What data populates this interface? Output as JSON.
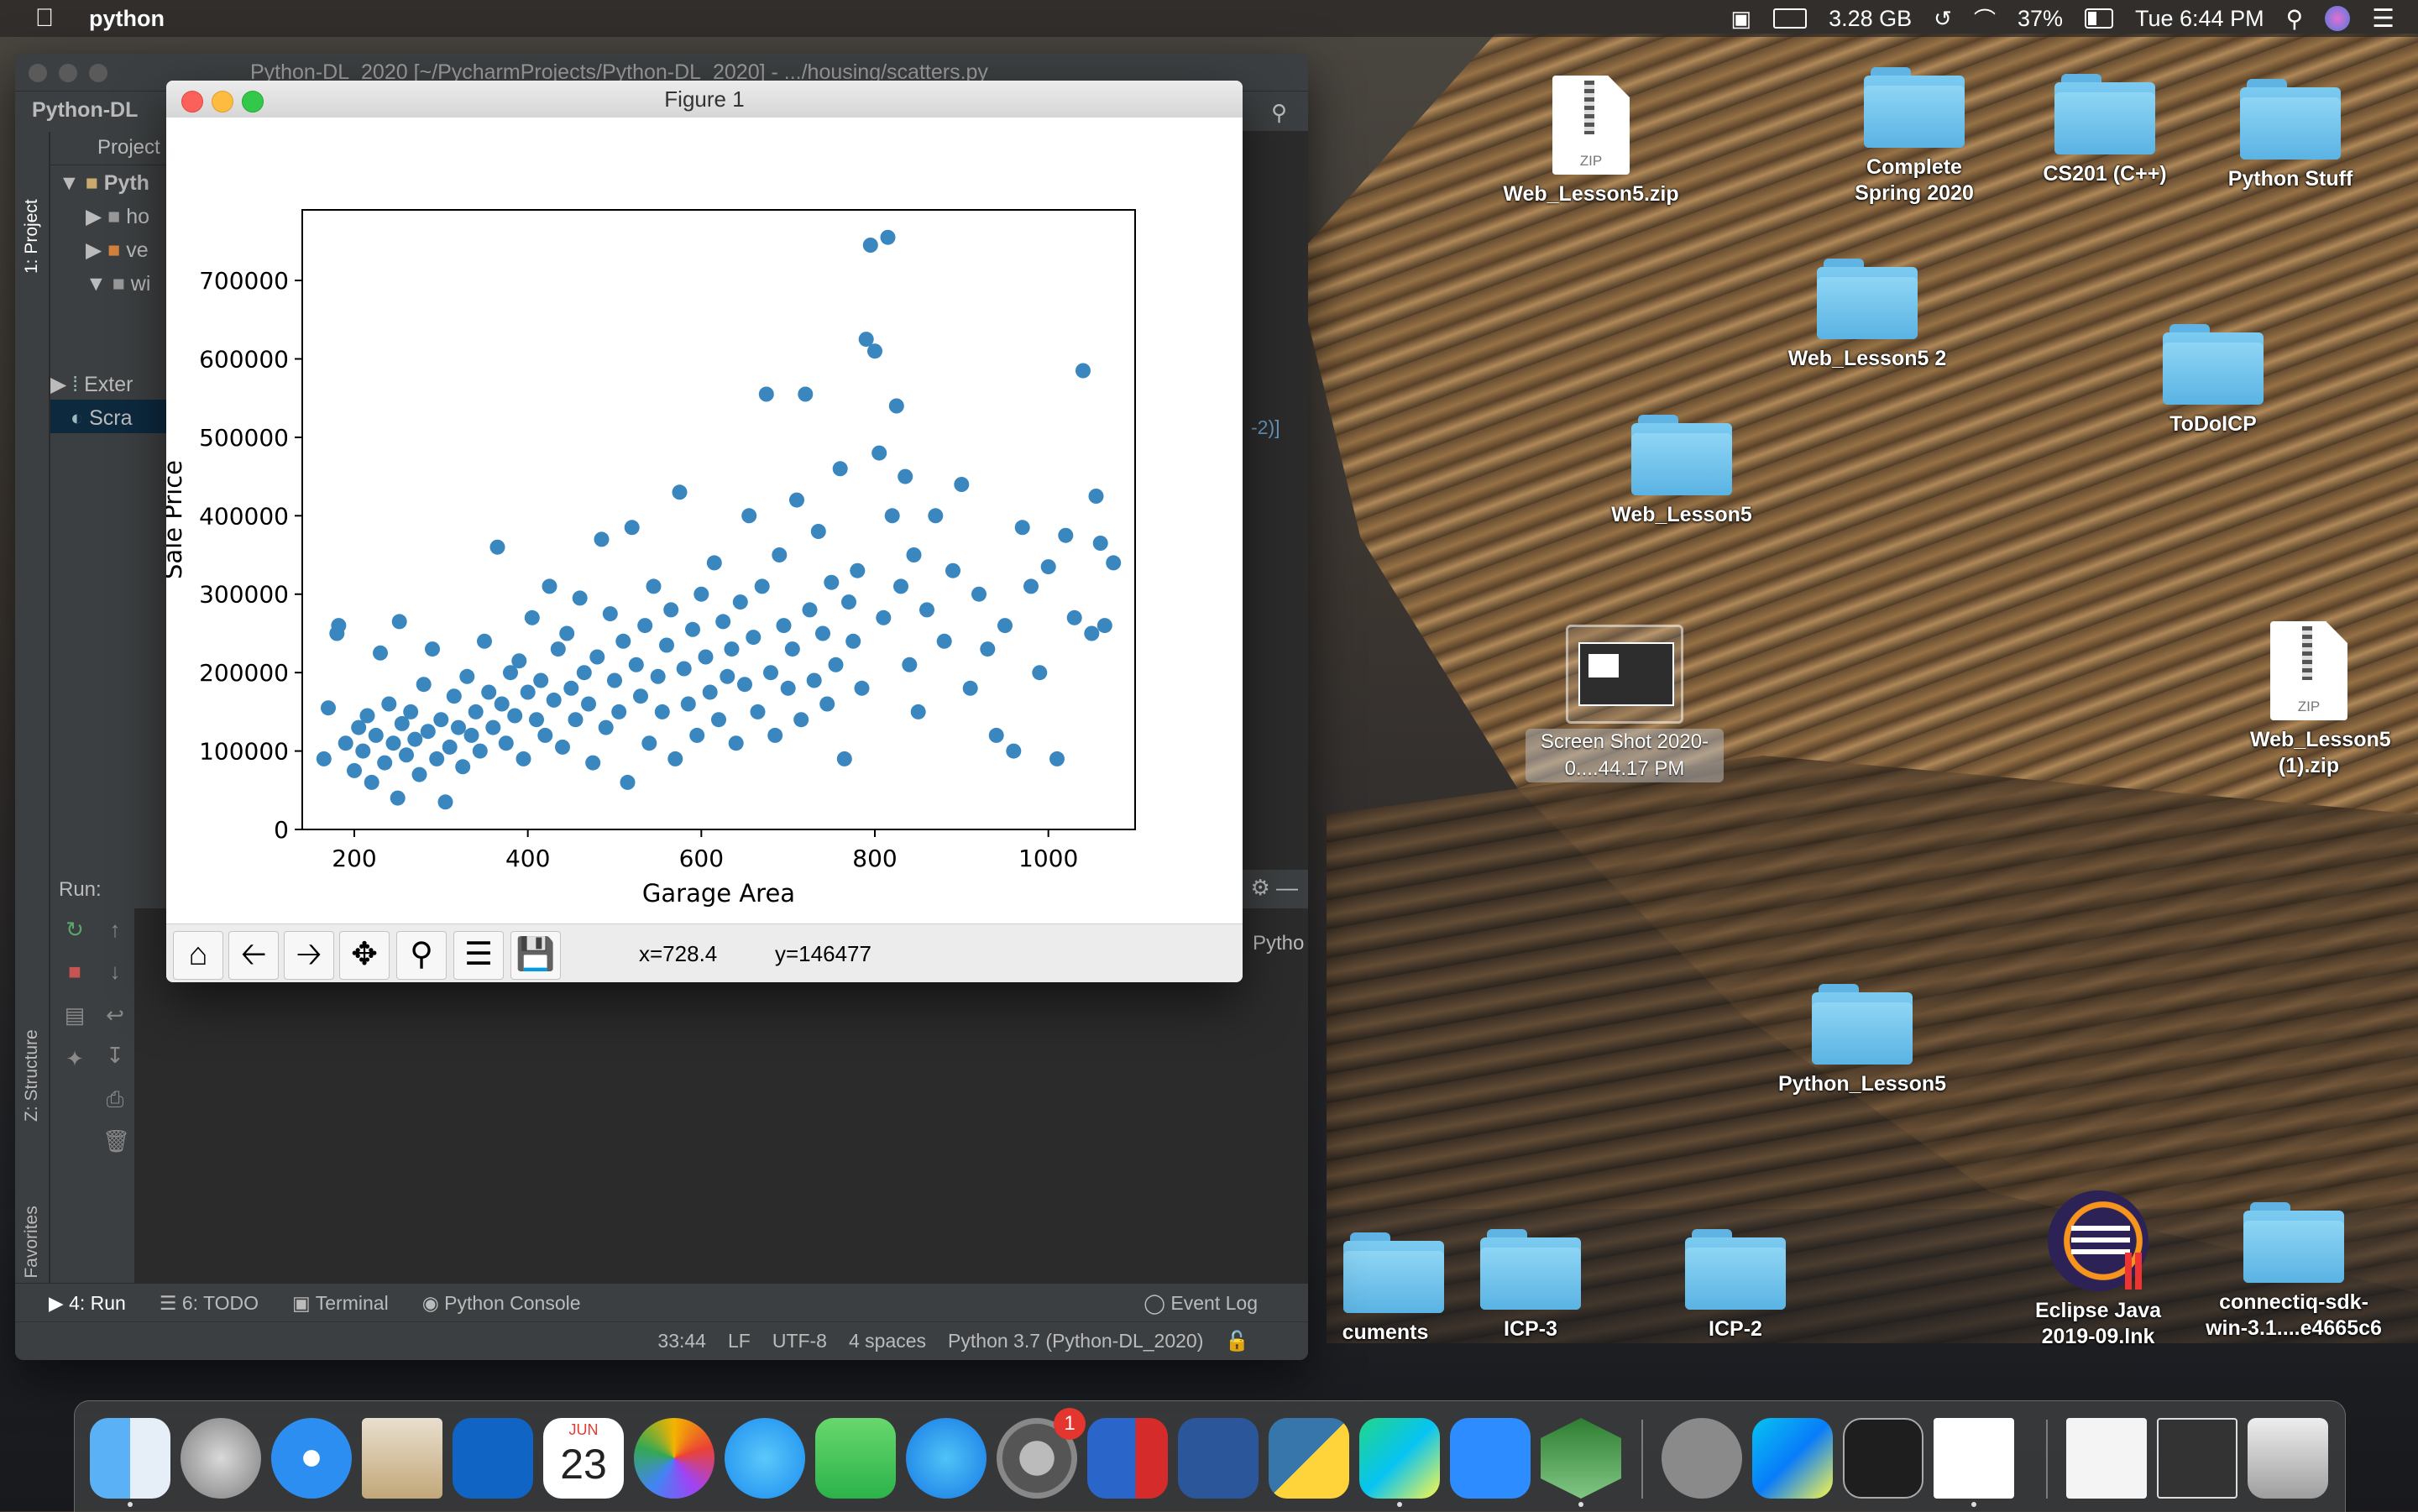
{
  "menubar": {
    "app_name": "python",
    "memory": "3.28 GB",
    "battery": "37%",
    "clock": "Tue 6:44 PM"
  },
  "pycharm": {
    "title": "Python-DL_2020 [~/PycharmProjects/Python-DL_2020] - .../housing/scatters.py",
    "project_name": "Python-DL",
    "project_tab": "Project",
    "tree": [
      "Pyth",
      "ho",
      "ve",
      "wi",
      "Exter",
      "Scra"
    ],
    "editor_snippet": "-2)]",
    "side_tabs": {
      "project": "1: Project",
      "structure": "Z: Structure",
      "favorites": "2: Favorites"
    },
    "run_label": "Run:",
    "run_right_text": "Pytho",
    "bottom_tabs": {
      "run": "4: Run",
      "todo": "6: TODO",
      "terminal": "Terminal",
      "console": "Python Console",
      "event_log": "Event Log"
    },
    "status": {
      "position": "33:44",
      "line_sep": "LF",
      "encoding": "UTF-8",
      "indent": "4 spaces",
      "interpreter": "Python 3.7 (Python-DL_2020)"
    }
  },
  "figure": {
    "title": "Figure 1",
    "x_readout": "x=728.4",
    "y_readout": "y=146477",
    "toolbar": [
      "home-icon",
      "back-icon",
      "forward-icon",
      "pan-icon",
      "zoom-icon",
      "configure-icon",
      "save-icon"
    ]
  },
  "chart_data": {
    "type": "scatter",
    "title": "",
    "xlabel": "Garage Area",
    "ylabel": "Sale Price",
    "xlim": [
      140,
      1100
    ],
    "ylim": [
      0,
      790000
    ],
    "xticks": [
      200,
      400,
      600,
      800,
      1000
    ],
    "yticks": [
      0,
      100000,
      200000,
      300000,
      400000,
      500000,
      600000,
      700000
    ],
    "color": "#3a86be",
    "points": [
      [
        165,
        90000
      ],
      [
        170,
        155000
      ],
      [
        180,
        250000
      ],
      [
        182,
        260000
      ],
      [
        190,
        110000
      ],
      [
        200,
        75000
      ],
      [
        205,
        130000
      ],
      [
        210,
        100000
      ],
      [
        215,
        145000
      ],
      [
        220,
        60000
      ],
      [
        225,
        120000
      ],
      [
        230,
        225000
      ],
      [
        235,
        85000
      ],
      [
        240,
        160000
      ],
      [
        245,
        110000
      ],
      [
        250,
        40000
      ],
      [
        252,
        265000
      ],
      [
        255,
        135000
      ],
      [
        260,
        95000
      ],
      [
        265,
        150000
      ],
      [
        270,
        115000
      ],
      [
        275,
        70000
      ],
      [
        280,
        185000
      ],
      [
        285,
        125000
      ],
      [
        290,
        230000
      ],
      [
        295,
        90000
      ],
      [
        300,
        140000
      ],
      [
        305,
        35000
      ],
      [
        310,
        105000
      ],
      [
        315,
        170000
      ],
      [
        320,
        130000
      ],
      [
        325,
        80000
      ],
      [
        330,
        195000
      ],
      [
        335,
        120000
      ],
      [
        340,
        150000
      ],
      [
        345,
        100000
      ],
      [
        350,
        240000
      ],
      [
        355,
        175000
      ],
      [
        360,
        130000
      ],
      [
        365,
        360000
      ],
      [
        370,
        160000
      ],
      [
        375,
        110000
      ],
      [
        380,
        200000
      ],
      [
        385,
        145000
      ],
      [
        390,
        215000
      ],
      [
        395,
        90000
      ],
      [
        400,
        175000
      ],
      [
        405,
        270000
      ],
      [
        410,
        140000
      ],
      [
        415,
        190000
      ],
      [
        420,
        120000
      ],
      [
        425,
        310000
      ],
      [
        430,
        165000
      ],
      [
        435,
        230000
      ],
      [
        440,
        105000
      ],
      [
        445,
        250000
      ],
      [
        450,
        180000
      ],
      [
        455,
        140000
      ],
      [
        460,
        295000
      ],
      [
        465,
        200000
      ],
      [
        470,
        160000
      ],
      [
        475,
        85000
      ],
      [
        480,
        220000
      ],
      [
        485,
        370000
      ],
      [
        490,
        130000
      ],
      [
        495,
        275000
      ],
      [
        500,
        190000
      ],
      [
        505,
        150000
      ],
      [
        510,
        240000
      ],
      [
        515,
        60000
      ],
      [
        520,
        385000
      ],
      [
        525,
        210000
      ],
      [
        530,
        170000
      ],
      [
        535,
        260000
      ],
      [
        540,
        110000
      ],
      [
        545,
        310000
      ],
      [
        550,
        195000
      ],
      [
        555,
        150000
      ],
      [
        560,
        235000
      ],
      [
        565,
        280000
      ],
      [
        570,
        90000
      ],
      [
        575,
        430000
      ],
      [
        580,
        205000
      ],
      [
        585,
        160000
      ],
      [
        590,
        255000
      ],
      [
        595,
        120000
      ],
      [
        600,
        300000
      ],
      [
        605,
        220000
      ],
      [
        610,
        175000
      ],
      [
        615,
        340000
      ],
      [
        620,
        140000
      ],
      [
        625,
        265000
      ],
      [
        630,
        195000
      ],
      [
        635,
        230000
      ],
      [
        640,
        110000
      ],
      [
        645,
        290000
      ],
      [
        650,
        185000
      ],
      [
        655,
        400000
      ],
      [
        660,
        245000
      ],
      [
        665,
        150000
      ],
      [
        670,
        310000
      ],
      [
        675,
        555000
      ],
      [
        680,
        200000
      ],
      [
        685,
        120000
      ],
      [
        690,
        350000
      ],
      [
        695,
        260000
      ],
      [
        700,
        180000
      ],
      [
        705,
        230000
      ],
      [
        710,
        420000
      ],
      [
        715,
        140000
      ],
      [
        720,
        555000
      ],
      [
        725,
        280000
      ],
      [
        730,
        190000
      ],
      [
        735,
        380000
      ],
      [
        740,
        250000
      ],
      [
        745,
        160000
      ],
      [
        750,
        315000
      ],
      [
        755,
        210000
      ],
      [
        760,
        460000
      ],
      [
        765,
        90000
      ],
      [
        770,
        290000
      ],
      [
        775,
        240000
      ],
      [
        780,
        330000
      ],
      [
        785,
        180000
      ],
      [
        790,
        625000
      ],
      [
        795,
        745000
      ],
      [
        800,
        610000
      ],
      [
        805,
        480000
      ],
      [
        810,
        270000
      ],
      [
        815,
        755000
      ],
      [
        820,
        400000
      ],
      [
        825,
        540000
      ],
      [
        830,
        310000
      ],
      [
        835,
        450000
      ],
      [
        840,
        210000
      ],
      [
        845,
        350000
      ],
      [
        850,
        150000
      ],
      [
        860,
        280000
      ],
      [
        870,
        400000
      ],
      [
        880,
        240000
      ],
      [
        890,
        330000
      ],
      [
        900,
        440000
      ],
      [
        910,
        180000
      ],
      [
        920,
        300000
      ],
      [
        930,
        230000
      ],
      [
        940,
        120000
      ],
      [
        950,
        260000
      ],
      [
        960,
        100000
      ],
      [
        970,
        385000
      ],
      [
        980,
        310000
      ],
      [
        990,
        200000
      ],
      [
        1000,
        335000
      ],
      [
        1010,
        90000
      ],
      [
        1020,
        375000
      ],
      [
        1030,
        270000
      ],
      [
        1040,
        585000
      ],
      [
        1050,
        250000
      ],
      [
        1055,
        425000
      ],
      [
        1060,
        365000
      ],
      [
        1065,
        260000
      ],
      [
        1075,
        340000
      ]
    ]
  },
  "desktop_icons": [
    {
      "label": "Web_Lesson5.zip",
      "kind": "zip"
    },
    {
      "label": "Complete Spring 2020",
      "kind": "folder"
    },
    {
      "label": "CS201 (C++)",
      "kind": "folder"
    },
    {
      "label": "Python Stuff",
      "kind": "folder"
    },
    {
      "label": "Web_Lesson5 2",
      "kind": "folder"
    },
    {
      "label": "ToDoICP",
      "kind": "folder"
    },
    {
      "label": "Web_Lesson5",
      "kind": "folder"
    },
    {
      "label": "Screen Shot 2020-0....44.17 PM",
      "kind": "screenshot"
    },
    {
      "label": "Web_Lesson5 (1).zip",
      "kind": "zip"
    },
    {
      "label": "Python_Lesson5",
      "kind": "folder"
    },
    {
      "label": "cuments",
      "kind": "folder"
    },
    {
      "label": "ICP-3",
      "kind": "folder"
    },
    {
      "label": "ICP-2",
      "kind": "folder"
    },
    {
      "label": "Eclipse Java 2019-09.lnk",
      "kind": "app"
    },
    {
      "label": "connectiq-sdk-win-3.1....e4665c6",
      "kind": "folder"
    }
  ],
  "zip_badge": "ZIP",
  "dock": {
    "calendar_month": "JUN",
    "calendar_day": "23",
    "prefs_badge": "1",
    "apps": [
      "finder",
      "launchpad",
      "safari",
      "mail",
      "outlook",
      "calendar",
      "photos",
      "messages",
      "facetime",
      "app-store",
      "system-preferences",
      "parallels",
      "word",
      "python-launcher",
      "pycharm",
      "zoom",
      "quicktime",
      "memory-monitor",
      "webstorm",
      "terminal",
      "document",
      "zip-archive",
      "screenshot-thumb",
      "trash"
    ]
  }
}
